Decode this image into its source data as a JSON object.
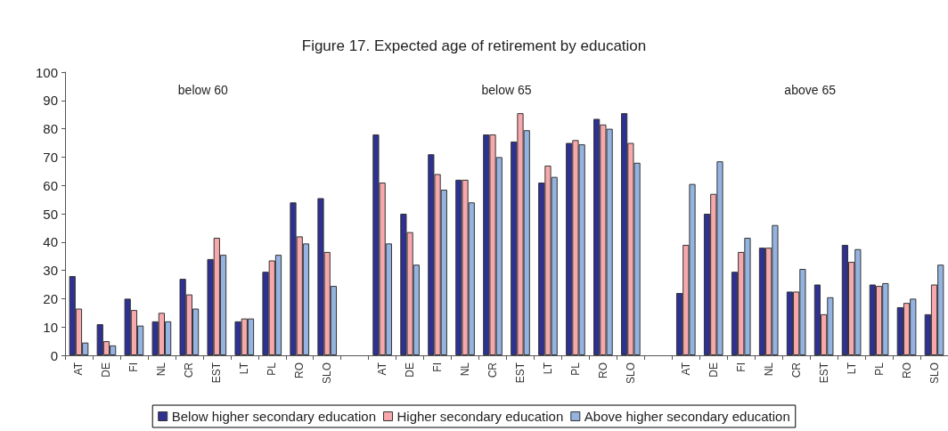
{
  "chart_data": {
    "type": "bar",
    "title": "Figure 17. Expected age of retirement by education",
    "categories": [
      "AT",
      "DE",
      "FI",
      "NL",
      "CR",
      "EST",
      "LT",
      "PL",
      "RO",
      "SLO",
      null,
      "AT",
      "DE",
      "FI",
      "NL",
      "CR",
      "EST",
      "LT",
      "PL",
      "RO",
      "SLO",
      null,
      "AT",
      "DE",
      "FI",
      "NL",
      "CR",
      "EST",
      "LT",
      "PL",
      "RO",
      "SLO"
    ],
    "series": [
      {
        "name": "Below higher secondary education",
        "color": "#2e3192",
        "values": [
          28,
          11,
          20,
          12,
          27,
          34,
          12,
          29.5,
          54,
          55.5,
          null,
          78,
          50,
          71,
          62,
          78,
          75.5,
          61,
          75,
          83.5,
          85.5,
          null,
          22,
          50,
          29.5,
          38,
          22.5,
          25,
          39,
          25,
          17,
          14.5
        ]
      },
      {
        "name": "Higher secondary education",
        "color": "#f7a8ac",
        "values": [
          16.5,
          5,
          16,
          15,
          21.5,
          41.5,
          13,
          33.5,
          42,
          36.5,
          null,
          61,
          43.5,
          64,
          62,
          78,
          85.5,
          67,
          76,
          81.5,
          75,
          null,
          39,
          57,
          36.5,
          38,
          22.5,
          14.5,
          33,
          24.5,
          18.5,
          25
        ]
      },
      {
        "name": "Above higher secondary education",
        "color": "#94b3e0",
        "values": [
          4.5,
          3.5,
          10.5,
          12,
          16.5,
          35.5,
          13,
          35.5,
          39.5,
          24.5,
          null,
          39.5,
          32,
          58.5,
          54,
          70,
          79.5,
          63,
          74.5,
          80,
          68,
          null,
          60.5,
          68.5,
          41.5,
          46,
          30.5,
          20.5,
          37.5,
          25.5,
          20,
          32
        ]
      }
    ],
    "ylim": [
      0,
      100
    ],
    "yticks": [
      0,
      10,
      20,
      30,
      40,
      50,
      60,
      70,
      80,
      90,
      100
    ],
    "grid": false,
    "legend": "bottom",
    "annotations": [
      "below 60",
      "below 65",
      "above 65"
    ]
  }
}
